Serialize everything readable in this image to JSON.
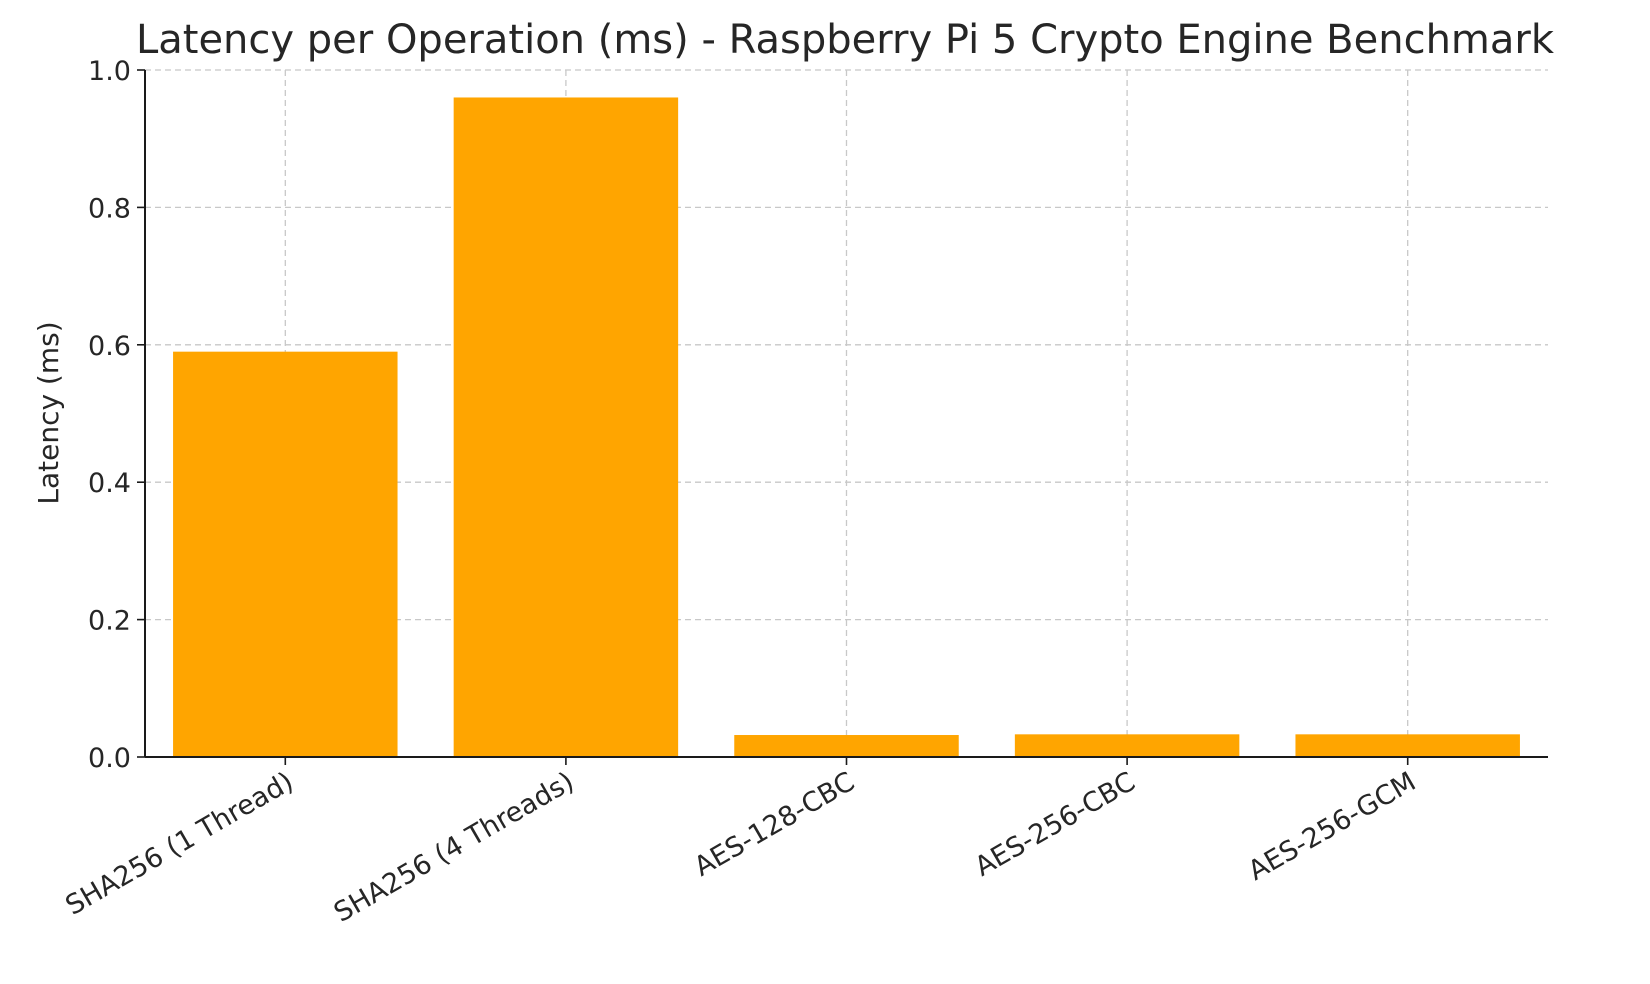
{
  "chart_data": {
    "type": "bar",
    "title": "Latency per Operation (ms) - Raspberry Pi 5 Crypto Engine Benchmark",
    "xlabel": "",
    "ylabel": "Latency (ms)",
    "categories": [
      "SHA256 (1 Thread)",
      "SHA256 (4 Threads)",
      "AES-128-CBC",
      "AES-256-CBC",
      "AES-256-GCM"
    ],
    "values": [
      0.59,
      0.96,
      0.032,
      0.033,
      0.033
    ],
    "ylim": [
      0,
      1.0
    ],
    "yticks": [
      "0.0",
      "0.2",
      "0.4",
      "0.6",
      "0.8",
      "1.0"
    ],
    "bar_color": "#FFA500",
    "grid": true,
    "legend": "none"
  }
}
